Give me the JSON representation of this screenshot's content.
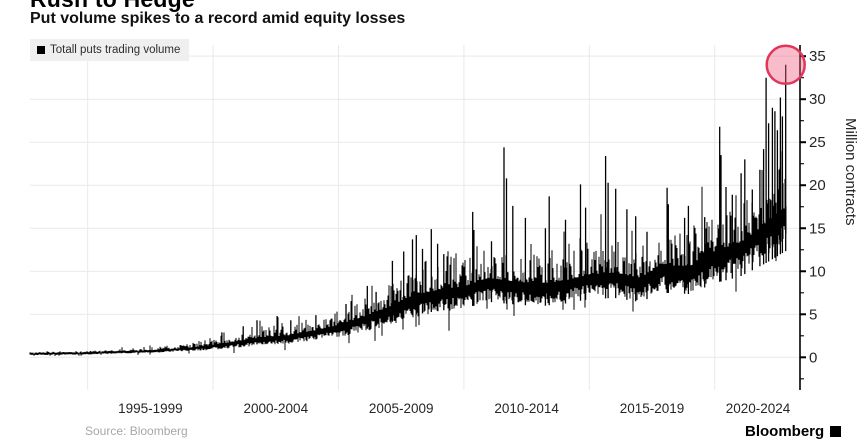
{
  "header": {
    "title": "Rush to Hedge",
    "subtitle": "Put volume spikes to a record amid equity losses"
  },
  "legend": {
    "label": "Totall puts trading volume",
    "swatch_color": "#000000"
  },
  "footer": {
    "source_note": "Source: Bloomberg",
    "watermark": "Bloomberg"
  },
  "colors": {
    "grid": "#e9e9e9",
    "axis": "#000000",
    "tick_text": "#262626",
    "series": "#000000",
    "legend_bg": "#efefef",
    "annotation_fill": "#ee5f80",
    "annotation_stroke": "#e0365c"
  },
  "chart_data": {
    "type": "line",
    "title": "Rush to Hedge",
    "subtitle": "Put volume spikes to a record amid equity losses",
    "series": [
      {
        "name": "Totall puts trading volume",
        "color": "#000000"
      }
    ],
    "xlabel": "",
    "ylabel": "Million contracts",
    "yticks": [
      0,
      5,
      10,
      15,
      20,
      25,
      30,
      35
    ],
    "minor_tick_step": 2.5,
    "ylim": [
      -3.8,
      36.3
    ],
    "grid": true,
    "legend_position": "top-left",
    "axis_side": "right",
    "xtick_labels": [
      "1995-1999",
      "2000-2004",
      "2005-2009",
      "2010-2014",
      "2015-2019",
      "2020-2024"
    ],
    "xtick_center_years": [
      1997.5,
      2002.5,
      2007.5,
      2012.5,
      2017.5,
      2022.5
    ],
    "grid_boundary_years": [
      1995,
      2000,
      2005,
      2010,
      2015,
      2020
    ],
    "x_year_range_displayed": [
      1992.7,
      2023.4
    ],
    "data_end_year": 2022.85,
    "baseline_keyframes": [
      [
        1992.8,
        0.35
      ],
      [
        1994,
        0.4
      ],
      [
        1995,
        0.45
      ],
      [
        1996,
        0.55
      ],
      [
        1997,
        0.65
      ],
      [
        1998,
        0.8
      ],
      [
        1999,
        1.0
      ],
      [
        2000,
        1.3
      ],
      [
        2001,
        1.7
      ],
      [
        2002,
        2.1
      ],
      [
        2003,
        2.3
      ],
      [
        2004,
        2.8
      ],
      [
        2005,
        3.4
      ],
      [
        2006,
        4.3
      ],
      [
        2007,
        5.3
      ],
      [
        2008,
        6.6
      ],
      [
        2009,
        7.2
      ],
      [
        2010,
        7.6
      ],
      [
        2011,
        8.6
      ],
      [
        2012,
        8.2
      ],
      [
        2013,
        7.9
      ],
      [
        2014,
        8.3
      ],
      [
        2015,
        9.0
      ],
      [
        2016,
        9.2
      ],
      [
        2017,
        8.6
      ],
      [
        2018,
        10.0
      ],
      [
        2019,
        9.8
      ],
      [
        2020,
        11.5
      ],
      [
        2021,
        12.5
      ],
      [
        2022,
        14.5
      ],
      [
        2022.85,
        16.5
      ]
    ],
    "noise_amplitude_keyframes": [
      [
        1992.8,
        0.12
      ],
      [
        1996,
        0.2
      ],
      [
        1999,
        0.35
      ],
      [
        2000,
        0.6
      ],
      [
        2002,
        0.9
      ],
      [
        2004,
        1.1
      ],
      [
        2005,
        1.4
      ],
      [
        2006,
        1.8
      ],
      [
        2007,
        2.2
      ],
      [
        2008,
        2.6
      ],
      [
        2010,
        2.6
      ],
      [
        2012,
        2.4
      ],
      [
        2014,
        2.4
      ],
      [
        2016,
        2.6
      ],
      [
        2018,
        2.8
      ],
      [
        2020,
        3.4
      ],
      [
        2021,
        3.2
      ],
      [
        2022,
        3.8
      ],
      [
        2022.85,
        4.0
      ]
    ],
    "spikes": [
      [
        2000.35,
        2.9
      ],
      [
        2001.2,
        3.6
      ],
      [
        2001.75,
        4.3
      ],
      [
        2002.55,
        4.8
      ],
      [
        2003.1,
        4.3
      ],
      [
        2004.1,
        4.9
      ],
      [
        2005.3,
        6.2
      ],
      [
        2006.15,
        8.3
      ],
      [
        2006.5,
        7.6
      ],
      [
        2007.15,
        11.2
      ],
      [
        2007.6,
        12.3
      ],
      [
        2007.95,
        13.7
      ],
      [
        2008.1,
        14.2
      ],
      [
        2008.35,
        12.6
      ],
      [
        2008.7,
        14.9
      ],
      [
        2008.95,
        13.2
      ],
      [
        2009.2,
        12.0
      ],
      [
        2010.35,
        16.9
      ],
      [
        2010.4,
        14.8
      ],
      [
        2011.1,
        13.5
      ],
      [
        2011.6,
        24.4
      ],
      [
        2011.7,
        20.8
      ],
      [
        2011.95,
        17.6
      ],
      [
        2012.45,
        16.2
      ],
      [
        2013.25,
        15.0
      ],
      [
        2013.4,
        18.7
      ],
      [
        2014.05,
        16.0
      ],
      [
        2014.65,
        20.1
      ],
      [
        2014.85,
        17.4
      ],
      [
        2015.65,
        23.4
      ],
      [
        2015.75,
        20.3
      ],
      [
        2016.05,
        19.6
      ],
      [
        2016.5,
        17.2
      ],
      [
        2016.85,
        16.4
      ],
      [
        2017.3,
        14.6
      ],
      [
        2018.1,
        19.7
      ],
      [
        2018.15,
        17.8
      ],
      [
        2018.8,
        16.2
      ],
      [
        2018.95,
        17.6
      ],
      [
        2019.6,
        16.3
      ],
      [
        2020.2,
        26.8
      ],
      [
        2020.25,
        23.5
      ],
      [
        2020.45,
        19.8
      ],
      [
        2020.7,
        18.9
      ],
      [
        2021.05,
        21.4
      ],
      [
        2021.2,
        23.0
      ],
      [
        2021.5,
        19.5
      ],
      [
        2021.8,
        21.8
      ],
      [
        2021.95,
        24.2
      ],
      [
        2022.05,
        32.5
      ],
      [
        2022.15,
        27.2
      ],
      [
        2022.3,
        29.0
      ],
      [
        2022.4,
        28.6
      ],
      [
        2022.5,
        26.4
      ],
      [
        2022.62,
        30.2
      ],
      [
        2022.7,
        28.0
      ],
      [
        2022.83,
        34.0
      ]
    ],
    "record_annotation": {
      "year": 2022.83,
      "value": 34.0,
      "radius_px": 19,
      "fill": "#ee5f80",
      "fill_opacity": 0.42,
      "stroke": "#e0365c",
      "stroke_width": 2.5
    },
    "noise_seed": 7
  }
}
